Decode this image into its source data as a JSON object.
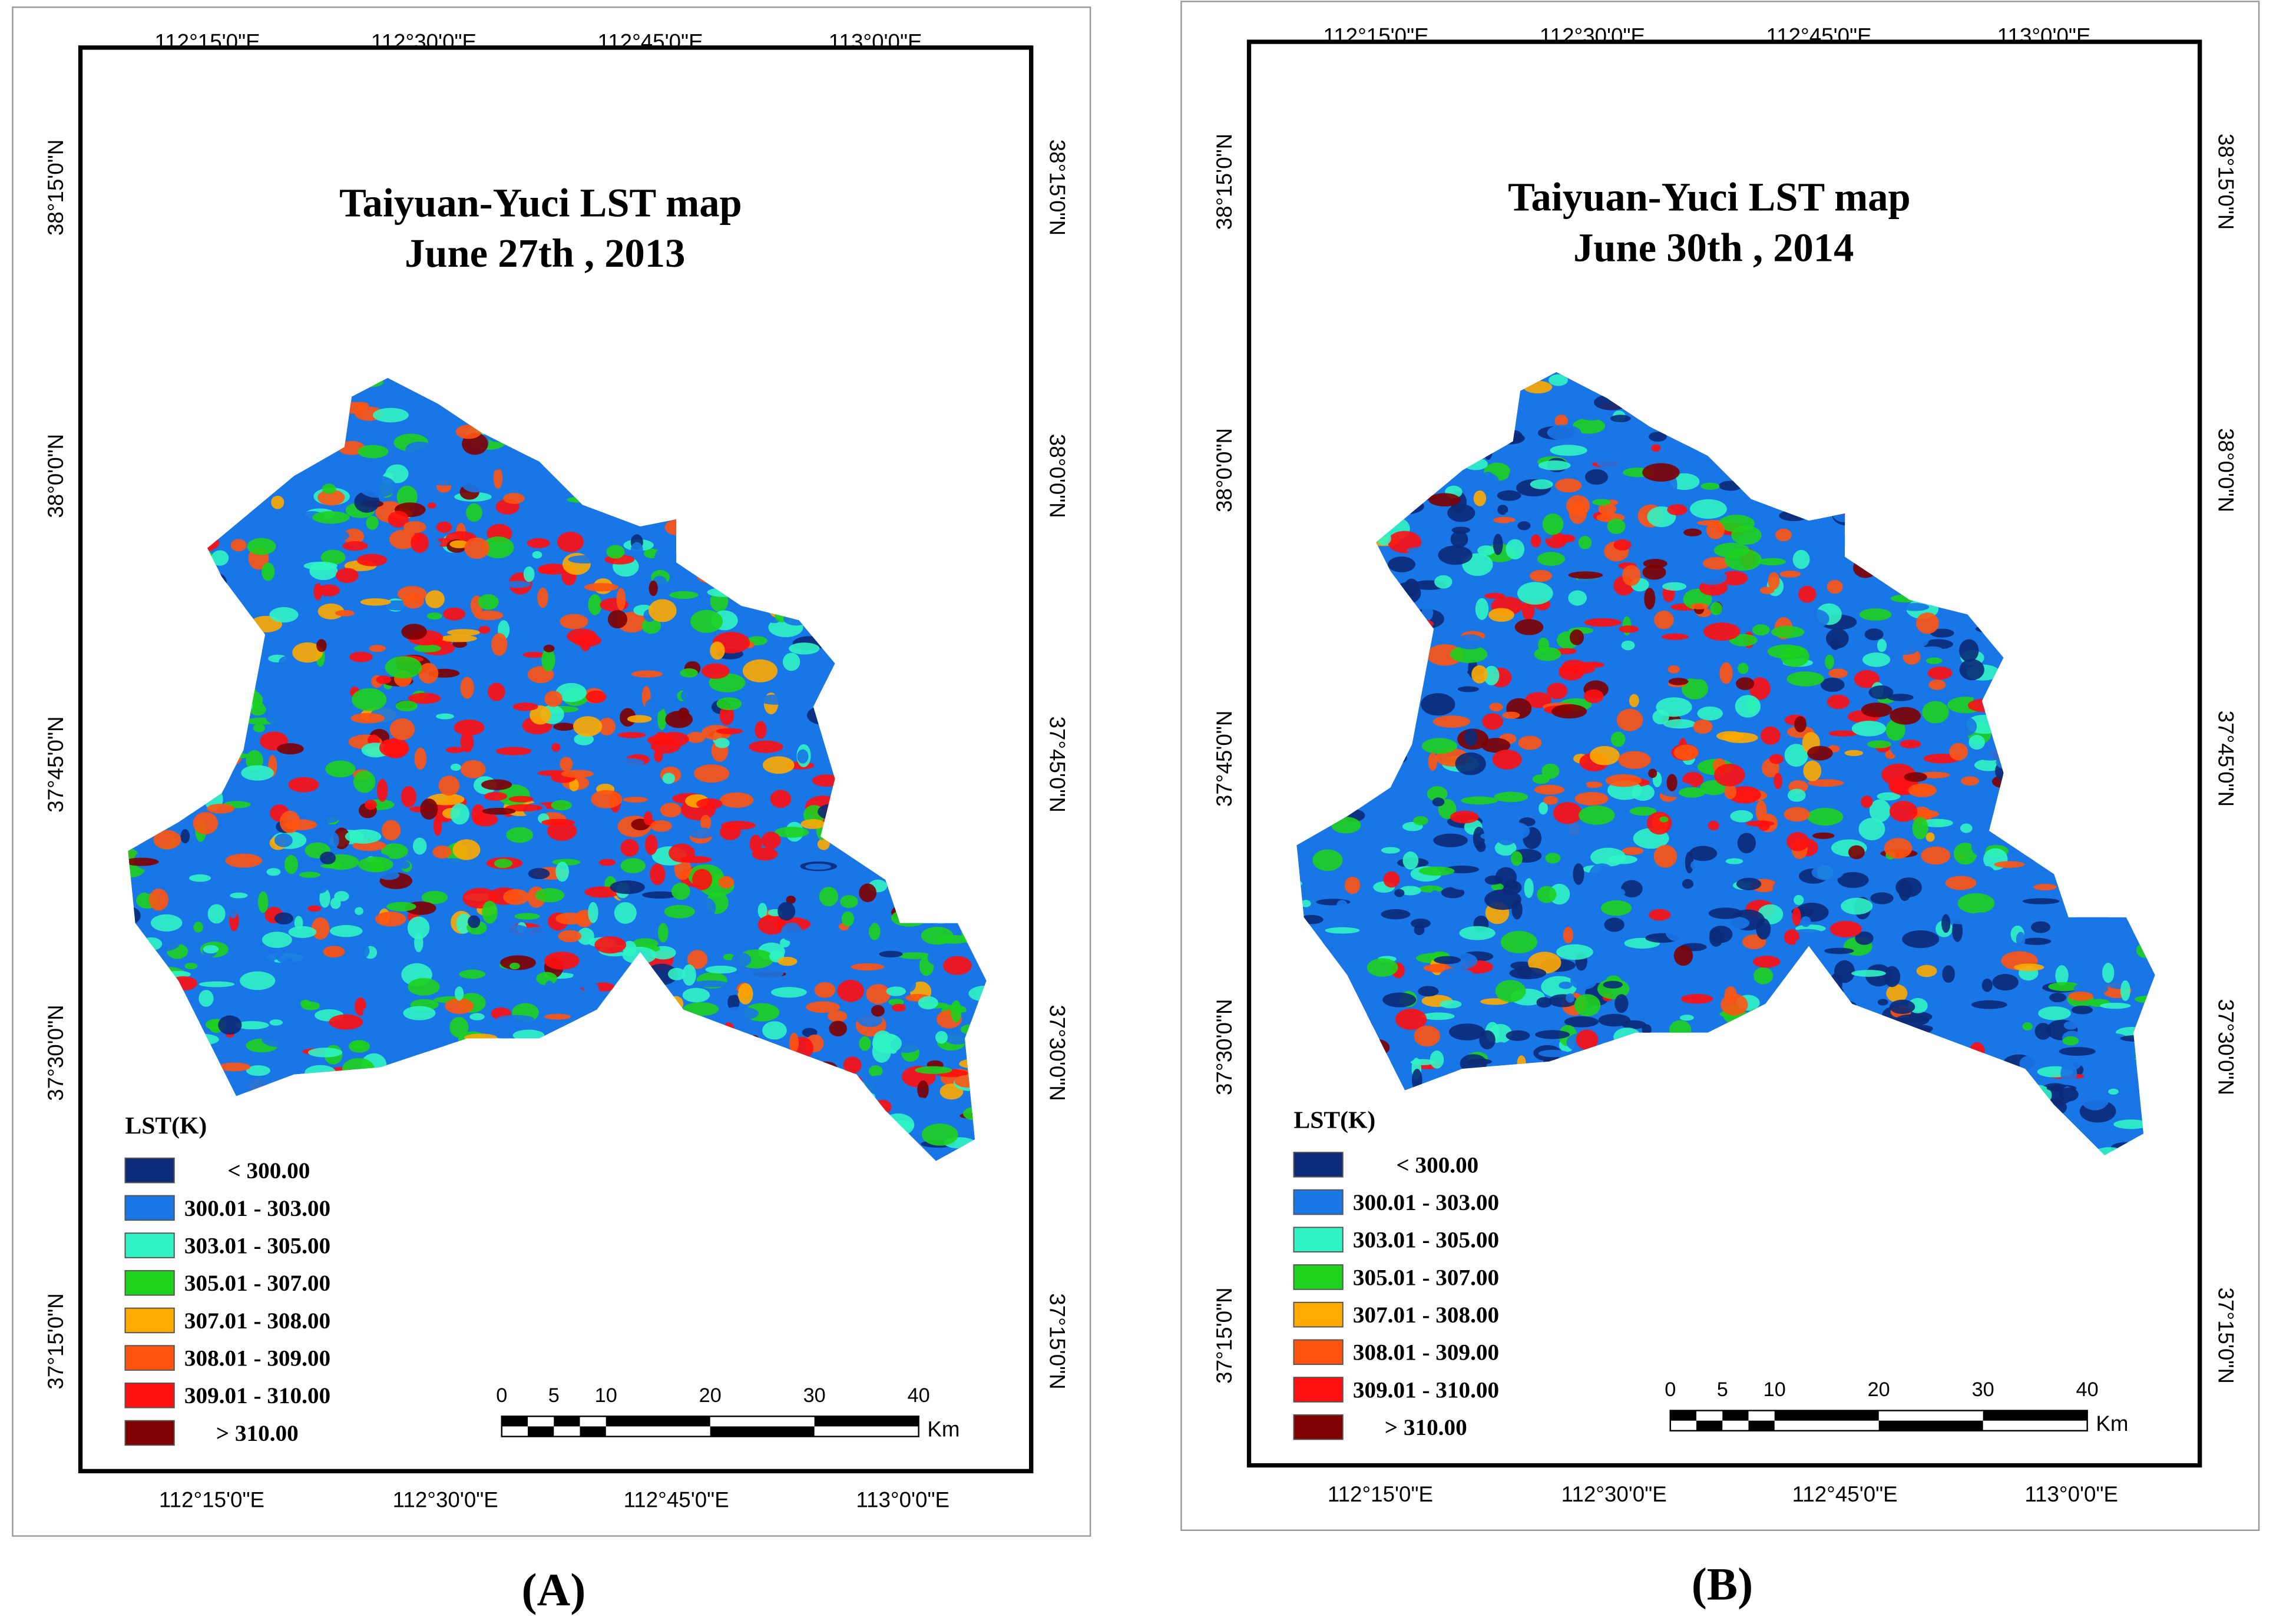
{
  "panels": [
    {
      "title": "Taiyuan-Yuci   LST  map",
      "subtitle": "June 27th , 2013",
      "label": "(A)"
    },
    {
      "title": "Taiyuan-Yuci   LST  map",
      "subtitle": "June 30th , 2014",
      "label": "(B)"
    }
  ],
  "lon_labels": [
    "112°15'0\"E",
    "112°30'0\"E",
    "112°45'0\"E",
    "113°0'0\"E"
  ],
  "lat_labels": [
    "38°15'0\"N",
    "38°0'0\"N",
    "37°45'0\"N",
    "37°30'0\"N",
    "37°15'0\"N"
  ],
  "legend": {
    "title": "LST(K)",
    "items": [
      {
        "label": "<  300.00",
        "color": "#0b2a78"
      },
      {
        "label": "300.01 - 303.00",
        "color": "#1876e6"
      },
      {
        "label": "303.01 - 305.00",
        "color": "#30f4c4"
      },
      {
        "label": "305.01 - 307.00",
        "color": "#1ed21e"
      },
      {
        "label": "307.01 - 308.00",
        "color": "#ffaa00"
      },
      {
        "label": "308.01 - 309.00",
        "color": "#ff5410"
      },
      {
        "label": "309.01 - 310.00",
        "color": "#ff1010"
      },
      {
        "label": "> 310.00",
        "color": "#7f0000"
      }
    ]
  },
  "scale_bar": {
    "ticks": [
      0,
      5,
      10,
      20,
      30,
      40
    ],
    "unit": "Km"
  }
}
